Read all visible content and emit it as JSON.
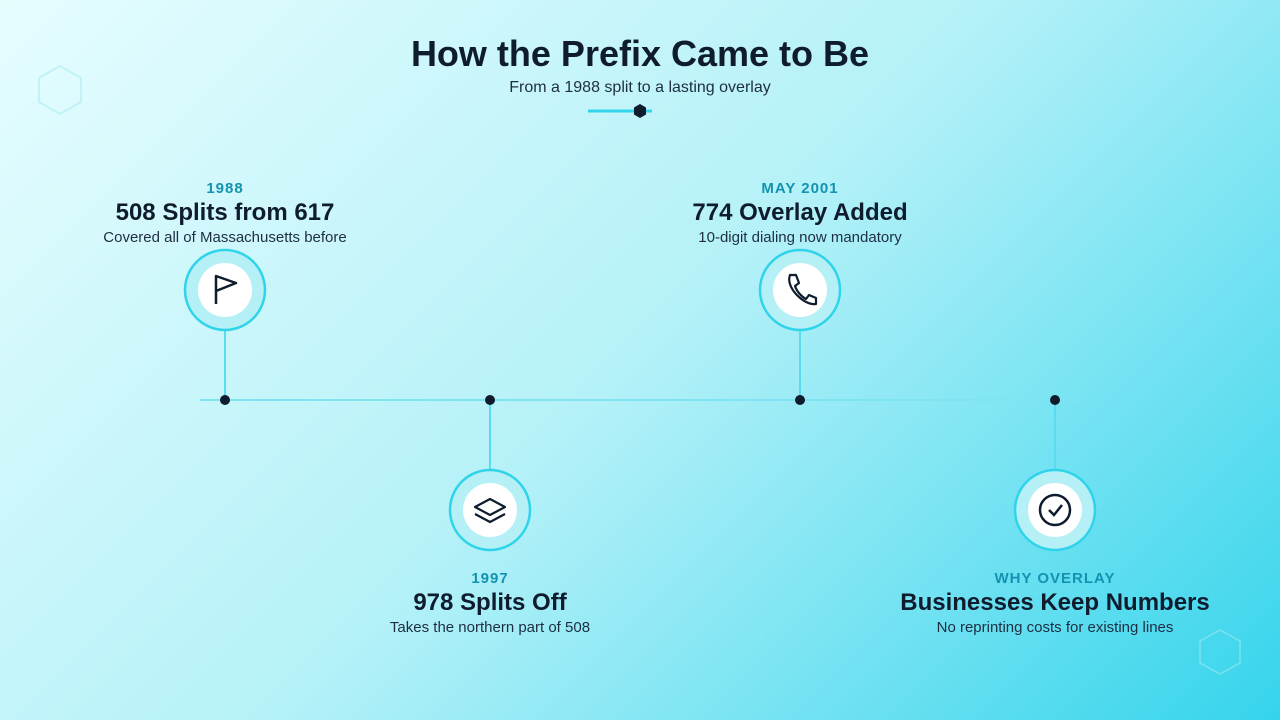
{
  "header": {
    "title": "How the Prefix Came to Be",
    "subtitle": "From a 1988 split to a lasting overlay"
  },
  "events": [
    {
      "label": "1988",
      "title": "508 Splits from 617",
      "description": "Covered all of Massachusetts before"
    },
    {
      "label": "1997",
      "title": "978 Splits Off",
      "description": "Takes the northern part of 508"
    },
    {
      "label": "MAY 2001",
      "title": "774 Overlay Added",
      "description": "10-digit dialing now mandatory"
    },
    {
      "label": "WHY OVERLAY",
      "title": "Businesses Keep Numbers",
      "description": "No reprinting costs for existing lines"
    }
  ]
}
